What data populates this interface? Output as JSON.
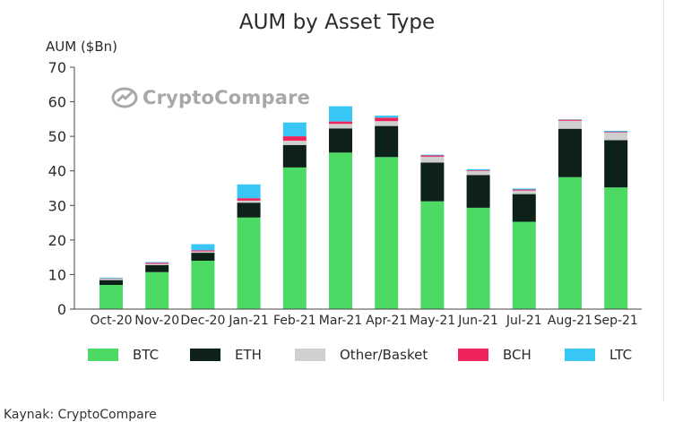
{
  "colors": {
    "btc": "#4cd964",
    "eth": "#0d2119",
    "other": "#cfcfcf",
    "bch": "#f0245a",
    "ltc": "#38c6f4",
    "axis": "#444444",
    "text": "#2b2b2b"
  },
  "watermark": {
    "text": "CryptoCompare",
    "icon": "cryptocompare-logo-icon"
  },
  "source_note": "Kaynak: CryptoCompare",
  "chart_data": {
    "type": "bar",
    "stacked": true,
    "title": "AUM by Asset Type",
    "ylabel": "AUM ($Bn)",
    "xlabel": "",
    "ylim": [
      0,
      70
    ],
    "yticks": [
      0,
      10,
      20,
      30,
      40,
      50,
      60,
      70
    ],
    "grid": false,
    "legend_position": "bottom",
    "categories": [
      "Oct-20",
      "Nov-20",
      "Dec-20",
      "Jan-21",
      "Feb-21",
      "Mar-21",
      "Apr-21",
      "May-21",
      "Jun-21",
      "Jul-21",
      "Aug-21",
      "Sep-21"
    ],
    "series": [
      {
        "name": "BTC",
        "color": "#4cd964",
        "values": [
          7.0,
          10.7,
          14.0,
          26.5,
          41.0,
          45.3,
          44.0,
          31.2,
          29.3,
          25.3,
          38.2,
          35.2
        ]
      },
      {
        "name": "ETH",
        "color": "#0d2119",
        "values": [
          1.4,
          2.0,
          2.3,
          4.3,
          6.5,
          7.0,
          9.0,
          11.2,
          9.5,
          8.0,
          14.0,
          13.7
        ]
      },
      {
        "name": "Other/Basket",
        "color": "#cfcfcf",
        "values": [
          0.4,
          0.4,
          0.4,
          0.6,
          1.2,
          1.3,
          1.4,
          1.7,
          1.2,
          1.0,
          2.3,
          2.2
        ]
      },
      {
        "name": "BCH",
        "color": "#f0245a",
        "values": [
          0.1,
          0.3,
          0.3,
          0.7,
          1.3,
          0.7,
          1.0,
          0.4,
          0.2,
          0.3,
          0.3,
          0.2
        ]
      },
      {
        "name": "LTC",
        "color": "#38c6f4",
        "values": [
          0.2,
          0.2,
          1.8,
          4.0,
          4.0,
          4.4,
          0.6,
          0.2,
          0.3,
          0.3,
          0.1,
          0.3
        ]
      }
    ]
  }
}
